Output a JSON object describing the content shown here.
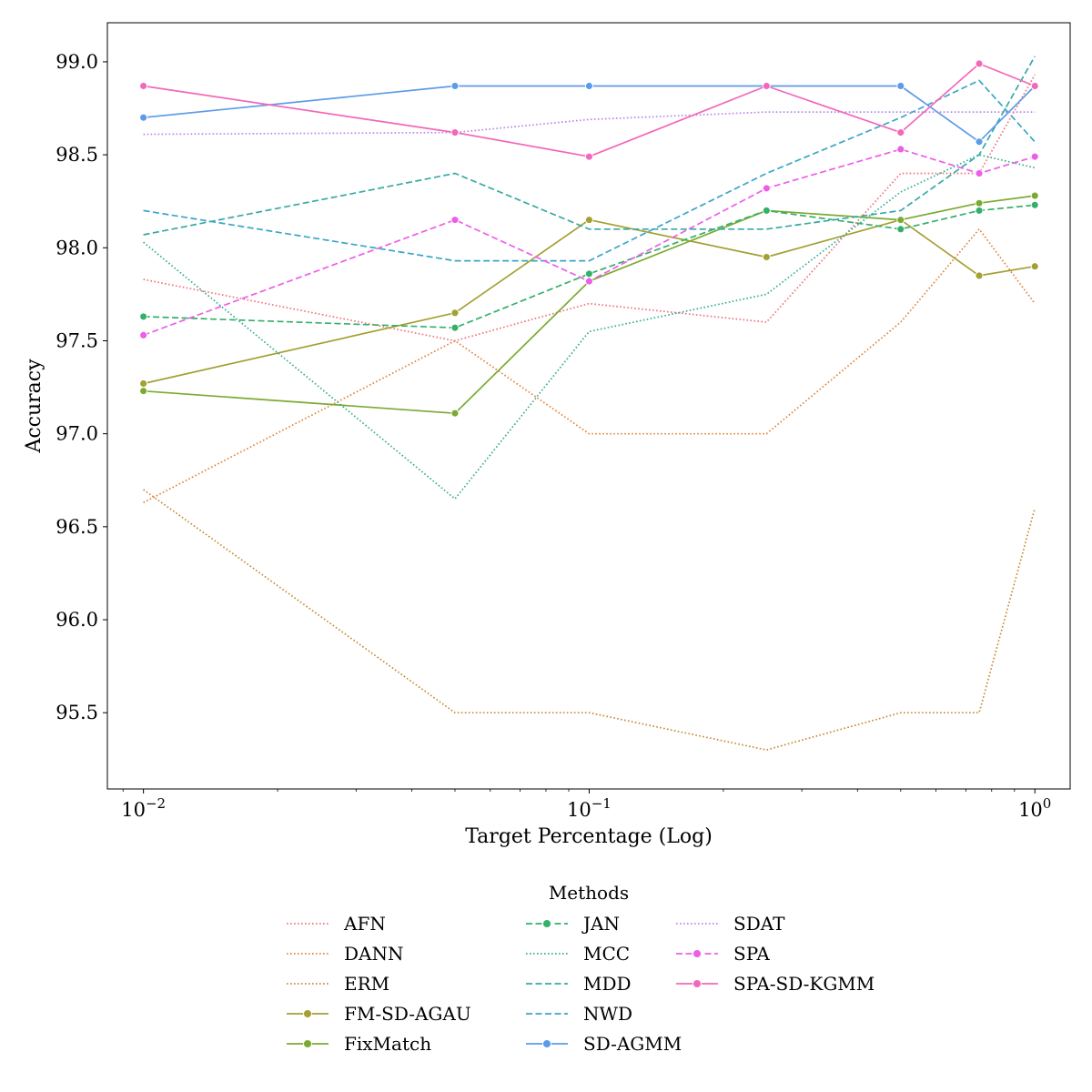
{
  "chart_data": {
    "type": "line",
    "xscale": "log",
    "xlabel": "Target Percentage (Log)",
    "ylabel": "Accuracy",
    "xlim": [
      0.0083,
      1.2
    ],
    "ylim": [
      95.09,
      99.21
    ],
    "x_ticks": [
      {
        "value": 0.01,
        "base": "10",
        "exp": "−2"
      },
      {
        "value": 0.1,
        "base": "10",
        "exp": "−1"
      },
      {
        "value": 1,
        "base": "10",
        "exp": "0"
      }
    ],
    "y_ticks": [
      "95.5",
      "96.0",
      "96.5",
      "97.0",
      "97.5",
      "98.0",
      "98.5",
      "99.0"
    ],
    "legend_title": "Methods",
    "legend_position": "bottom-center",
    "series": [
      {
        "name": "AFN",
        "color": "#f0717e",
        "style": "dotted",
        "markers": false,
        "x": [
          0.01,
          0.05,
          0.1,
          0.25,
          0.5,
          0.75,
          1.0
        ],
        "y": [
          97.83,
          97.5,
          97.7,
          97.6,
          98.4,
          98.4,
          98.93
        ]
      },
      {
        "name": "DANN",
        "color": "#e0833a",
        "style": "dotted",
        "markers": false,
        "x": [
          0.01,
          0.05,
          0.1,
          0.25,
          0.5,
          0.75,
          1.0
        ],
        "y": [
          96.63,
          97.5,
          97.0,
          97.0,
          97.6,
          98.1,
          97.7
        ]
      },
      {
        "name": "ERM",
        "color": "#c48a32",
        "style": "dotted",
        "markers": false,
        "x": [
          0.01,
          0.05,
          0.1,
          0.25,
          0.5,
          0.75,
          1.0
        ],
        "y": [
          96.7,
          95.5,
          95.5,
          95.3,
          95.5,
          95.5,
          96.6
        ]
      },
      {
        "name": "FM-SD-AGAU",
        "color": "#a4a033",
        "style": "solid",
        "markers": true,
        "x": [
          0.01,
          0.05,
          0.1,
          0.25,
          0.5,
          0.75,
          1.0
        ],
        "y": [
          97.27,
          97.65,
          98.15,
          97.95,
          98.15,
          97.85,
          97.9
        ]
      },
      {
        "name": "FixMatch",
        "color": "#7baa32",
        "style": "solid",
        "markers": true,
        "x": [
          0.01,
          0.05,
          0.1,
          0.25,
          0.5,
          0.75,
          1.0
        ],
        "y": [
          97.23,
          97.11,
          97.82,
          98.2,
          98.15,
          98.24,
          98.28
        ]
      },
      {
        "name": "JAN",
        "color": "#33b06a",
        "style": "dashed",
        "markers": true,
        "x": [
          0.01,
          0.05,
          0.1,
          0.25,
          0.5,
          0.75,
          1.0
        ],
        "y": [
          97.63,
          97.57,
          97.86,
          98.2,
          98.1,
          98.2,
          98.23
        ]
      },
      {
        "name": "MCC",
        "color": "#36ad92",
        "style": "dotted",
        "markers": false,
        "x": [
          0.01,
          0.05,
          0.1,
          0.25,
          0.5,
          0.75,
          1.0
        ],
        "y": [
          98.03,
          96.65,
          97.55,
          97.75,
          98.3,
          98.5,
          98.43
        ]
      },
      {
        "name": "MDD",
        "color": "#38a9a5",
        "style": "dashed",
        "markers": false,
        "x": [
          0.01,
          0.05,
          0.1,
          0.25,
          0.5,
          0.75,
          1.0
        ],
        "y": [
          98.07,
          98.4,
          98.1,
          98.1,
          98.2,
          98.5,
          99.03
        ]
      },
      {
        "name": "NWD",
        "color": "#3aa6c6",
        "style": "dashed",
        "markers": false,
        "x": [
          0.01,
          0.05,
          0.1,
          0.25,
          0.5,
          0.75,
          1.0
        ],
        "y": [
          98.2,
          97.93,
          97.93,
          98.4,
          98.7,
          98.9,
          98.57
        ]
      },
      {
        "name": "SD-AGMM",
        "color": "#5c9be8",
        "style": "solid",
        "markers": true,
        "x": [
          0.01,
          0.05,
          0.1,
          0.25,
          0.5,
          0.75,
          1.0
        ],
        "y": [
          98.7,
          98.87,
          98.87,
          98.87,
          98.87,
          98.57,
          98.87
        ]
      },
      {
        "name": "SDAT",
        "color": "#b985e8",
        "style": "dotted",
        "markers": false,
        "x": [
          0.01,
          0.05,
          0.1,
          0.25,
          0.5,
          0.75,
          1.0
        ],
        "y": [
          98.61,
          98.62,
          98.69,
          98.73,
          98.73,
          98.73,
          98.73
        ]
      },
      {
        "name": "SPA",
        "color": "#ec5ee8",
        "style": "dashed",
        "markers": true,
        "x": [
          0.01,
          0.05,
          0.1,
          0.25,
          0.5,
          0.75,
          1.0
        ],
        "y": [
          97.53,
          98.15,
          97.82,
          98.32,
          98.53,
          98.4,
          98.49
        ]
      },
      {
        "name": "SPA-SD-KGMM",
        "color": "#f268ba",
        "style": "solid",
        "markers": true,
        "x": [
          0.01,
          0.05,
          0.1,
          0.25,
          0.5,
          0.75,
          1.0
        ],
        "y": [
          98.87,
          98.62,
          98.49,
          98.87,
          98.62,
          98.99,
          98.87
        ]
      }
    ]
  }
}
